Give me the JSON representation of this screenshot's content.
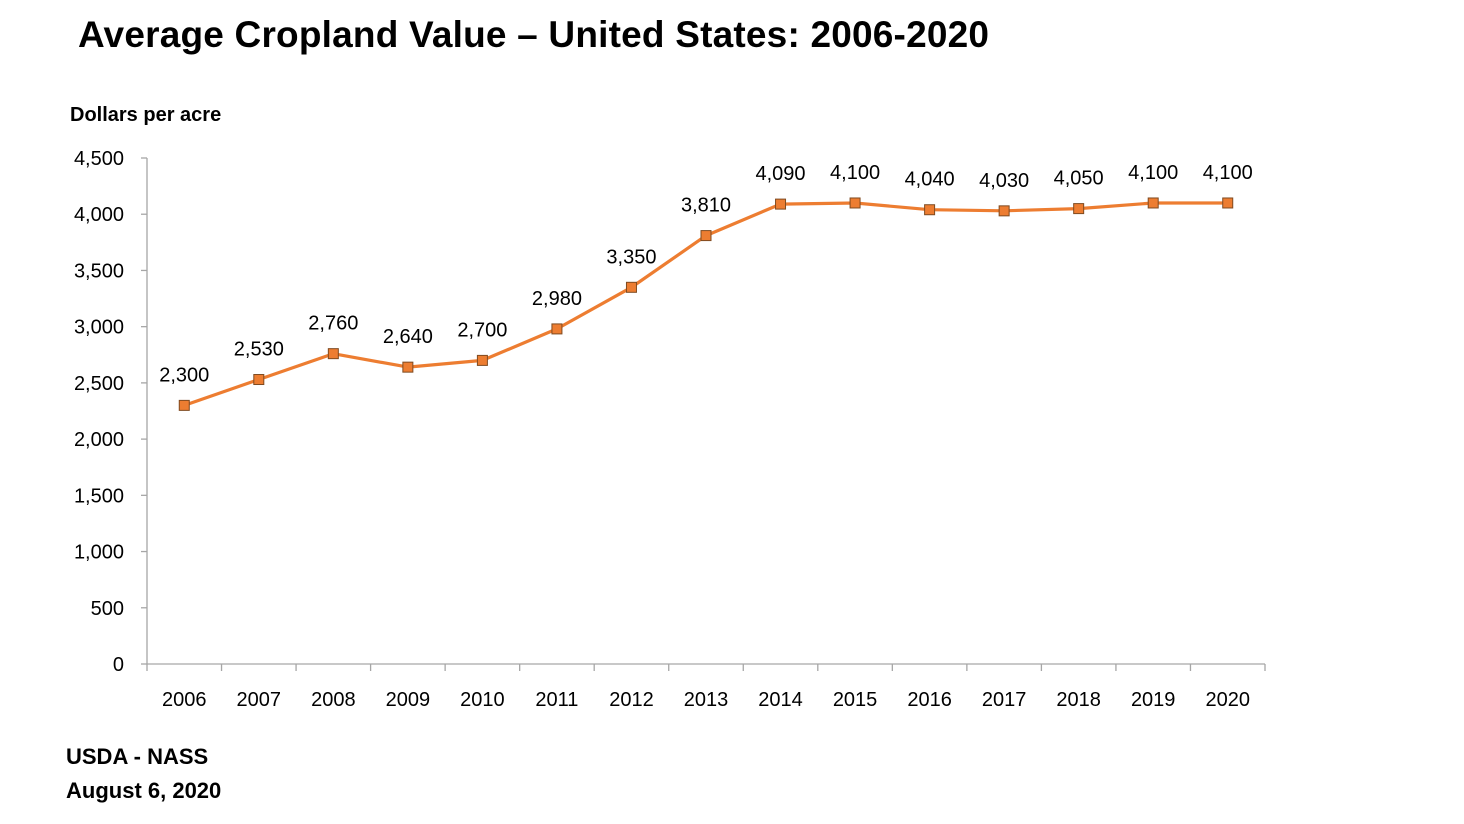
{
  "chart_data": {
    "type": "line",
    "title": "Average Cropland Value – United States: 2006-2020",
    "ylabel": "Dollars per acre",
    "xlabel": "",
    "categories": [
      "2006",
      "2007",
      "2008",
      "2009",
      "2010",
      "2011",
      "2012",
      "2013",
      "2014",
      "2015",
      "2016",
      "2017",
      "2018",
      "2019",
      "2020"
    ],
    "series": [
      {
        "name": "Average Cropland Value",
        "values": [
          2300,
          2530,
          2760,
          2640,
          2700,
          2980,
          3350,
          3810,
          4090,
          4100,
          4040,
          4030,
          4050,
          4100,
          4100
        ],
        "labels": [
          "2,300",
          "2,530",
          "2,760",
          "2,640",
          "2,700",
          "2,980",
          "3,350",
          "3,810",
          "4,090",
          "4,100",
          "4,040",
          "4,030",
          "4,050",
          "4,100",
          "4,100"
        ],
        "color": "#ED7D31",
        "marker": "square"
      }
    ],
    "ylim": [
      0,
      4500
    ],
    "yticks": [
      0,
      500,
      1000,
      1500,
      2000,
      2500,
      3000,
      3500,
      4000,
      4500
    ],
    "ytick_labels": [
      "0",
      "500",
      "1,000",
      "1,500",
      "2,000",
      "2,500",
      "3,000",
      "3,500",
      "4,000",
      "4,500"
    ],
    "grid": false,
    "legend": "none"
  },
  "source": {
    "line1": "USDA - NASS",
    "line2": "August 6, 2020"
  },
  "colors": {
    "line": "#ED7D31",
    "marker_fill": "#ED7D31",
    "marker_edge": "#7F4A20",
    "axis": "#A6A6A6",
    "text": "#000000"
  }
}
